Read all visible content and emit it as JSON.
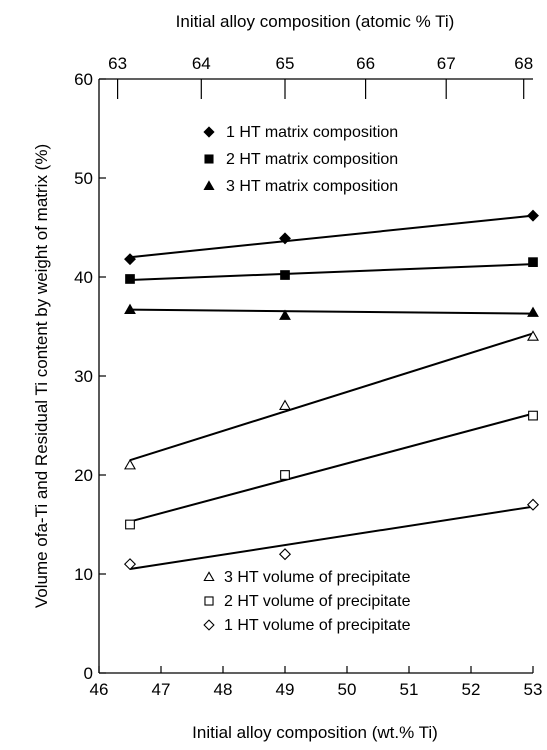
{
  "chart_data": {
    "type": "scatter",
    "xlabel": "Initial alloy composition (wt.% Ti)",
    "x2label": "Initial alloy composition (atomic % Ti)",
    "ylabel": "Volume ofa-Ti  and Residual Ti content by weight of matrix (%)",
    "xlim": [
      46,
      53
    ],
    "ylim": [
      0,
      60
    ],
    "x_ticks": [
      "46",
      "47",
      "48",
      "49",
      "50",
      "51",
      "52",
      "53"
    ],
    "y_ticks": [
      "0",
      "10",
      "20",
      "30",
      "40",
      "50",
      "60"
    ],
    "x2_ticks": [
      {
        "label": "63",
        "x": 46.3
      },
      {
        "label": "64",
        "x": 47.65
      },
      {
        "label": "65",
        "x": 49.0
      },
      {
        "label": "66",
        "x": 50.3
      },
      {
        "label": "67",
        "x": 51.6
      },
      {
        "label": "68",
        "x": 52.85
      }
    ],
    "grid": false,
    "legend_top_placement": "top-center",
    "legend_bottom_placement": "bottom-center",
    "series": [
      {
        "name": "1 HT matrix composition",
        "marker": "diamond",
        "filled": true,
        "x": [
          46.5,
          49,
          53
        ],
        "y": [
          41.8,
          43.9,
          46.2
        ],
        "fit": [
          [
            46.5,
            42.0
          ],
          [
            53,
            46.2
          ]
        ]
      },
      {
        "name": "2 HT matrix composition",
        "marker": "square",
        "filled": true,
        "x": [
          46.5,
          49,
          53
        ],
        "y": [
          39.8,
          40.2,
          41.5
        ],
        "fit": [
          [
            46.5,
            39.7
          ],
          [
            53,
            41.3
          ]
        ]
      },
      {
        "name": "3 HT matrix composition",
        "marker": "triangle",
        "filled": true,
        "x": [
          46.5,
          49,
          53
        ],
        "y": [
          36.7,
          36.1,
          36.4
        ],
        "fit": [
          [
            46.5,
            36.7
          ],
          [
            53,
            36.3
          ]
        ]
      },
      {
        "name": "3 HT volume of precipitate",
        "marker": "triangle",
        "filled": false,
        "x": [
          46.5,
          49,
          53
        ],
        "y": [
          21.0,
          27.0,
          34.0
        ],
        "fit": [
          [
            46.5,
            21.5
          ],
          [
            53,
            34.3
          ]
        ]
      },
      {
        "name": "2 HT volume of precipitate",
        "marker": "square",
        "filled": false,
        "x": [
          46.5,
          49,
          53
        ],
        "y": [
          15.0,
          20.0,
          26.0
        ],
        "fit": [
          [
            46.5,
            15.3
          ],
          [
            53,
            26.2
          ]
        ]
      },
      {
        "name": "1 HT volume of precipitate",
        "marker": "diamond",
        "filled": false,
        "x": [
          46.5,
          49,
          53
        ],
        "y": [
          11.0,
          12.0,
          17.0
        ],
        "fit": [
          [
            46.5,
            10.5
          ],
          [
            53,
            16.8
          ]
        ]
      }
    ],
    "legend_top": [
      "1 HT matrix composition",
      "2 HT matrix composition",
      "3 HT matrix composition"
    ],
    "legend_bottom": [
      "3 HT volume of precipitate",
      "2 HT volume of precipitate",
      "1 HT volume of precipitate"
    ]
  }
}
